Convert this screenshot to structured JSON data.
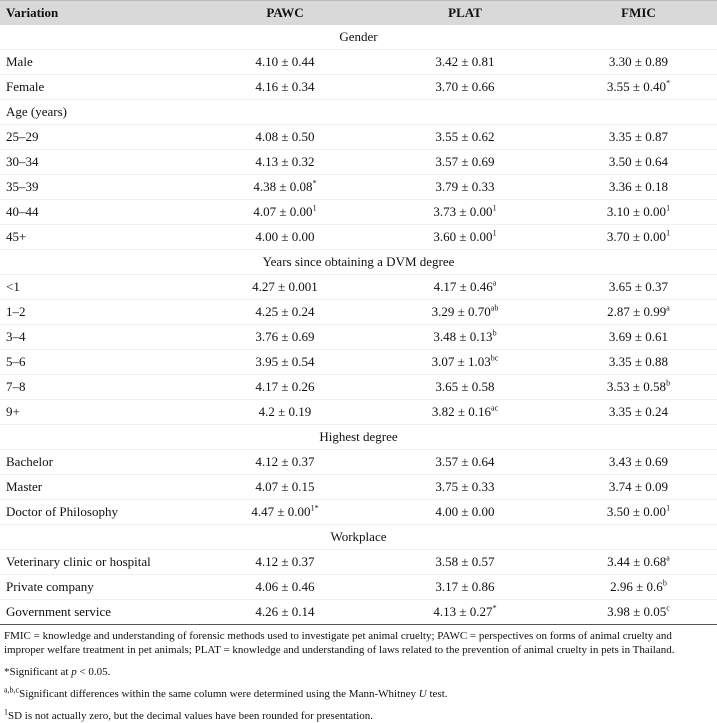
{
  "table": {
    "header": [
      "Variation",
      "PAWC",
      "PLAT",
      "FMIC"
    ],
    "sections": [
      {
        "title": "Gender",
        "rows": [
          {
            "label": "Male",
            "cells": [
              "4.10 ± 0.44",
              "3.42 ± 0.81",
              "3.30 ± 0.89"
            ]
          },
          {
            "label": "Female",
            "cells": [
              "4.16 ± 0.34",
              "3.70 ± 0.66",
              {
                "v": "3.55 ± 0.40",
                "sup": "*"
              }
            ]
          }
        ]
      },
      {
        "title": "Age (years)",
        "align": "left",
        "rows": [
          {
            "label": "25–29",
            "cells": [
              "4.08 ± 0.50",
              "3.55 ± 0.62",
              "3.35 ± 0.87"
            ]
          },
          {
            "label": "30–34",
            "cells": [
              "4.13 ± 0.32",
              "3.57 ± 0.69",
              "3.50 ± 0.64"
            ]
          },
          {
            "label": "35–39",
            "cells": [
              {
                "v": "4.38 ± 0.08",
                "sup": "*"
              },
              "3.79 ± 0.33",
              "3.36 ± 0.18"
            ]
          },
          {
            "label": "40–44",
            "cells": [
              {
                "v": "4.07 ± 0.00",
                "sup": "1"
              },
              {
                "v": "3.73 ± 0.00",
                "sup": "1"
              },
              {
                "v": "3.10 ± 0.00",
                "sup": "1"
              }
            ]
          },
          {
            "label": "45+",
            "cells": [
              "4.00 ± 0.00",
              {
                "v": "3.60 ± 0.00",
                "sup": "1"
              },
              {
                "v": "3.70 ± 0.00",
                "sup": "1"
              }
            ]
          }
        ]
      },
      {
        "title": "Years since obtaining a DVM degree",
        "rows": [
          {
            "label": "<1",
            "cells": [
              "4.27 ± 0.001",
              {
                "v": "4.17 ± 0.46",
                "sup": "a"
              },
              "3.65 ± 0.37"
            ]
          },
          {
            "label": "1–2",
            "cells": [
              "4.25 ± 0.24",
              {
                "v": "3.29 ± 0.70",
                "sup": "ab"
              },
              {
                "v": "2.87 ± 0.99",
                "sup": "a"
              }
            ]
          },
          {
            "label": "3–4",
            "cells": [
              "3.76 ± 0.69",
              {
                "v": "3.48 ± 0.13",
                "sup": "b"
              },
              "3.69 ± 0.61"
            ]
          },
          {
            "label": "5–6",
            "cells": [
              "3.95 ± 0.54",
              {
                "v": "3.07 ± 1.03",
                "sup": "bc"
              },
              "3.35 ± 0.88"
            ]
          },
          {
            "label": "7–8",
            "cells": [
              "4.17 ± 0.26",
              "3.65 ± 0.58",
              {
                "v": "3.53 ± 0.58",
                "sup": "b"
              }
            ]
          },
          {
            "label": "9+",
            "cells": [
              "4.2 ± 0.19",
              {
                "v": "3.82 ± 0.16",
                "sup": "ac"
              },
              "3.35 ± 0.24"
            ]
          }
        ]
      },
      {
        "title": "Highest degree",
        "rows": [
          {
            "label": "Bachelor",
            "cells": [
              "4.12 ± 0.37",
              "3.57 ± 0.64",
              "3.43 ± 0.69"
            ]
          },
          {
            "label": "Master",
            "cells": [
              "4.07 ± 0.15",
              "3.75 ± 0.33",
              "3.74 ± 0.09"
            ]
          },
          {
            "label": "Doctor of Philosophy",
            "cells": [
              {
                "v": "4.47 ± 0.00",
                "sup": "1*"
              },
              "4.00 ± 0.00",
              {
                "v": "3.50 ± 0.00",
                "sup": "1"
              }
            ]
          }
        ]
      },
      {
        "title": "Workplace",
        "rows": [
          {
            "label": "Veterinary clinic or hospital",
            "cells": [
              "4.12 ± 0.37",
              "3.58 ± 0.57",
              {
                "v": "3.44 ± 0.68",
                "sup": "a"
              }
            ]
          },
          {
            "label": "Private company",
            "cells": [
              "4.06 ± 0.46",
              "3.17 ± 0.86",
              {
                "v": "2.96 ± 0.6",
                "sup": "b"
              }
            ]
          },
          {
            "label": "Government service",
            "cells": [
              "4.26 ± 0.14",
              {
                "v": "4.13 ± 0.27",
                "sup": "*"
              },
              {
                "v": "3.98 ± 0.05",
                "sup": "c"
              }
            ]
          }
        ]
      }
    ]
  },
  "footnotes": [
    [
      {
        "t": "FMIC = knowledge and understanding of forensic methods used to investigate pet animal cruelty; PAWC = perspectives on forms of animal cruelty and improper welfare treatment in pet animals; PLAT = knowledge and understanding of laws related to the prevention of animal cruelty in pets in Thailand."
      }
    ],
    [
      {
        "t": "*"
      },
      {
        "t": "Significant at "
      },
      {
        "t": "p",
        "s": "i"
      },
      {
        "t": " < 0.05."
      }
    ],
    [
      {
        "t": "a,b,c",
        "s": "sup"
      },
      {
        "t": "Significant differences within the same column were determined using the Mann-Whitney "
      },
      {
        "t": "U",
        "s": "i"
      },
      {
        "t": " test."
      }
    ],
    [
      {
        "t": "1",
        "s": "sup"
      },
      {
        "t": "SD is not actually zero, but the decimal values have been rounded for presentation."
      }
    ]
  ]
}
